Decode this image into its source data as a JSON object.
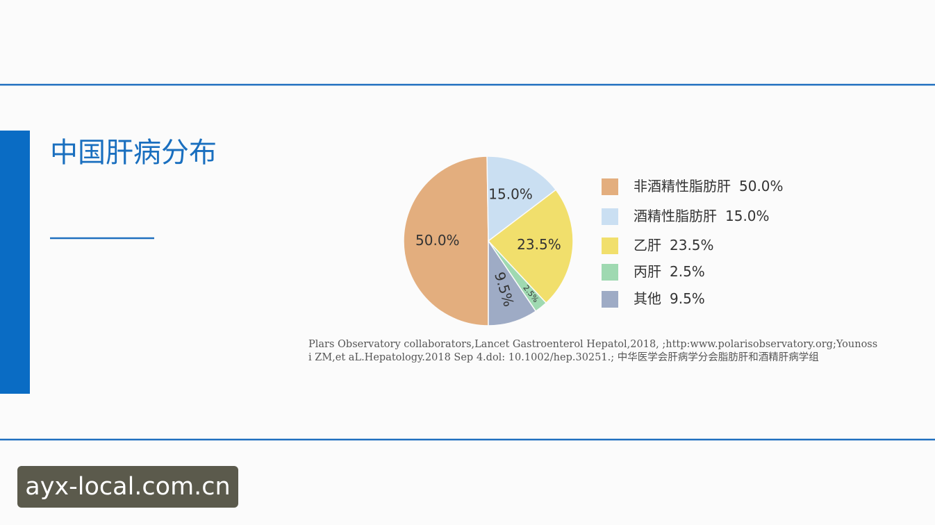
{
  "chart_data": {
    "type": "pie",
    "title": "中国肝病分布",
    "categories": [
      "非酒精性脂肪肝",
      "酒精性脂肪肝",
      "乙肝",
      "丙肝",
      "其他"
    ],
    "values": [
      50,
      15,
      23.5,
      2.5,
      9.5
    ],
    "value_labels": [
      "50.0%",
      "15.0%",
      "23.5%",
      "2.5%",
      "9.5%"
    ],
    "colors": [
      "#e3ae7e",
      "#cadff2",
      "#f1df6c",
      "#9fd9b1",
      "#9eabc5"
    ],
    "legend": "right",
    "source": "Plars Observatory collaborators,Lancet Gastroenterol Hepatol,2018, ;http:www.polarisobservatory.org;Younossi ZM,et aL.Hepatology.2018 Sep 4.dol: 10.1002/hep.30251.; 中华医学会肝病学分会脂肪肝和酒精肝病学组"
  },
  "watermark": "ayx-local.com.cn"
}
